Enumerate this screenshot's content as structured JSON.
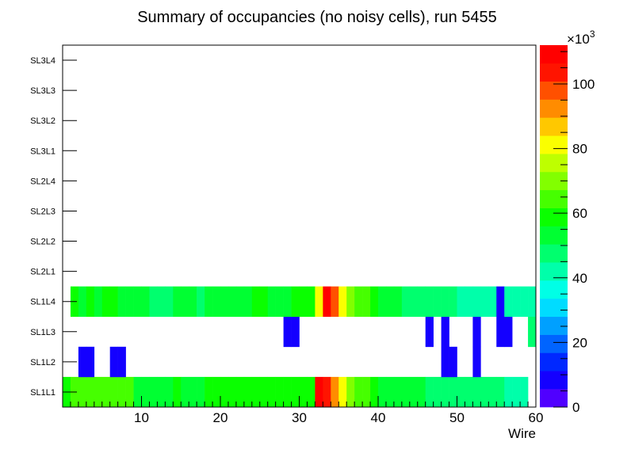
{
  "chart_data": {
    "type": "heatmap",
    "title": "Summary of occupancies (no noisy cells), run 5455",
    "xlabel": "Wire",
    "ylabel": "",
    "xlim": [
      0,
      60
    ],
    "x_ticks": [
      "10",
      "20",
      "30",
      "40",
      "50",
      "60"
    ],
    "y_categories": [
      "SL1L1",
      "SL1L2",
      "SL1L3",
      "SL1L4",
      "SL2L1",
      "SL2L2",
      "SL2L3",
      "SL2L4",
      "SL3L1",
      "SL3L2",
      "SL3L3",
      "SL3L4"
    ],
    "z_range": [
      0,
      112000
    ],
    "z_multiplier": "×10",
    "z_multiplier_exp": "3",
    "z_ticks": [
      "0",
      "20",
      "40",
      "60",
      "80",
      "100"
    ],
    "palette": [
      "#5000ff",
      "#1400ff",
      "#0028ff",
      "#0064ff",
      "#00a0ff",
      "#00dcff",
      "#00ffe6",
      "#00ffaa",
      "#00ff6e",
      "#00ff32",
      "#0aff00",
      "#46ff00",
      "#82ff00",
      "#beff00",
      "#faff00",
      "#ffc800",
      "#ff8c00",
      "#ff5000",
      "#ff1400",
      "#ff0000"
    ],
    "cells": {
      "SL1L1": [
        [
          1,
          56
        ],
        [
          2,
          62
        ],
        [
          3,
          62
        ],
        [
          4,
          62
        ],
        [
          5,
          62
        ],
        [
          6,
          62
        ],
        [
          7,
          62
        ],
        [
          8,
          62
        ],
        [
          9,
          62
        ],
        [
          10,
          51
        ],
        [
          11,
          51
        ],
        [
          12,
          51
        ],
        [
          13,
          51
        ],
        [
          14,
          51
        ],
        [
          15,
          56
        ],
        [
          16,
          51
        ],
        [
          17,
          51
        ],
        [
          18,
          51
        ],
        [
          19,
          58
        ],
        [
          20,
          58
        ],
        [
          21,
          58
        ],
        [
          22,
          58
        ],
        [
          23,
          58
        ],
        [
          24,
          58
        ],
        [
          25,
          58
        ],
        [
          26,
          58
        ],
        [
          27,
          58
        ],
        [
          28,
          58
        ],
        [
          29,
          58
        ],
        [
          30,
          58
        ],
        [
          31,
          58
        ],
        [
          32,
          58
        ],
        [
          33,
          110
        ],
        [
          34,
          105
        ],
        [
          35,
          92
        ],
        [
          36,
          82
        ],
        [
          37,
          70
        ],
        [
          38,
          64
        ],
        [
          39,
          66
        ],
        [
          40,
          60
        ],
        [
          41,
          51
        ],
        [
          42,
          51
        ],
        [
          43,
          51
        ],
        [
          44,
          51
        ],
        [
          45,
          51
        ],
        [
          46,
          51
        ],
        [
          47,
          46
        ],
        [
          48,
          46
        ],
        [
          49,
          46
        ],
        [
          50,
          46
        ],
        [
          51,
          46
        ],
        [
          52,
          46
        ],
        [
          53,
          46
        ],
        [
          54,
          46
        ],
        [
          55,
          46
        ],
        [
          56,
          46
        ],
        [
          57,
          40
        ],
        [
          58,
          40
        ],
        [
          59,
          40
        ]
      ],
      "SL1L2": [
        [
          3,
          6
        ],
        [
          4,
          6
        ],
        [
          7,
          6
        ],
        [
          8,
          6
        ],
        [
          49,
          6
        ],
        [
          50,
          6
        ],
        [
          53,
          6
        ]
      ],
      "SL1L3": [
        [
          29,
          6
        ],
        [
          30,
          6
        ],
        [
          47,
          6
        ],
        [
          49,
          6
        ],
        [
          53,
          6
        ],
        [
          56,
          6
        ],
        [
          57,
          6
        ],
        [
          60,
          50
        ]
      ],
      "SL1L4": [
        [
          2,
          58
        ],
        [
          3,
          52
        ],
        [
          4,
          58
        ],
        [
          5,
          52
        ],
        [
          6,
          58
        ],
        [
          7,
          58
        ],
        [
          8,
          52
        ],
        [
          9,
          52
        ],
        [
          10,
          52
        ],
        [
          11,
          52
        ],
        [
          12,
          46
        ],
        [
          13,
          46
        ],
        [
          14,
          46
        ],
        [
          15,
          52
        ],
        [
          16,
          52
        ],
        [
          17,
          52
        ],
        [
          18,
          46
        ],
        [
          19,
          52
        ],
        [
          20,
          52
        ],
        [
          21,
          52
        ],
        [
          22,
          52
        ],
        [
          23,
          52
        ],
        [
          24,
          52
        ],
        [
          25,
          58
        ],
        [
          26,
          58
        ],
        [
          27,
          52
        ],
        [
          28,
          52
        ],
        [
          29,
          52
        ],
        [
          30,
          58
        ],
        [
          31,
          58
        ],
        [
          32,
          58
        ],
        [
          33,
          82
        ],
        [
          34,
          112
        ],
        [
          35,
          96
        ],
        [
          36,
          82
        ],
        [
          37,
          70
        ],
        [
          38,
          66
        ],
        [
          39,
          62
        ],
        [
          40,
          58
        ],
        [
          41,
          52
        ],
        [
          42,
          52
        ],
        [
          43,
          52
        ],
        [
          44,
          46
        ],
        [
          45,
          46
        ],
        [
          46,
          46
        ],
        [
          47,
          46
        ],
        [
          48,
          46
        ],
        [
          49,
          46
        ],
        [
          50,
          46
        ],
        [
          51,
          40
        ],
        [
          52,
          40
        ],
        [
          53,
          40
        ],
        [
          54,
          40
        ],
        [
          55,
          40
        ],
        [
          56,
          6
        ],
        [
          57,
          40
        ],
        [
          58,
          40
        ],
        [
          59,
          40
        ],
        [
          60,
          40
        ]
      ]
    }
  }
}
